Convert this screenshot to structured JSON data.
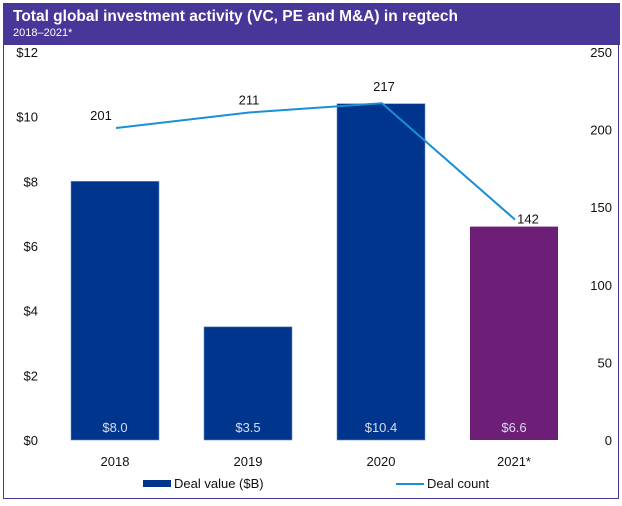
{
  "header": {
    "title": "Total global investment activity (VC, PE and M&A) in regtech",
    "subtitle": "2018–2021*"
  },
  "colors": {
    "header_bg": "#483698",
    "bar": "#00358e",
    "bar_highlight": "#6d1f78",
    "line": "#1a8fd6"
  },
  "chart_data": {
    "type": "bar",
    "title": "Total global investment activity (VC, PE and M&A) in regtech",
    "subtitle": "2018–2021*",
    "categories": [
      "2018",
      "2019",
      "2020",
      "2021*"
    ],
    "series": [
      {
        "name": "Deal value ($B)",
        "type": "bar",
        "axis": "left",
        "values": [
          8.0,
          3.5,
          10.4,
          6.6
        ],
        "labels": [
          "$8.0",
          "$3.5",
          "$10.4",
          "$6.6"
        ],
        "colors": [
          "#00358e",
          "#00358e",
          "#00358e",
          "#6d1f78"
        ]
      },
      {
        "name": "Deal count",
        "type": "line",
        "axis": "right",
        "values": [
          201,
          211,
          217,
          142
        ],
        "labels": [
          "201",
          "211",
          "217",
          "142"
        ],
        "color": "#1a8fd6"
      }
    ],
    "left_axis": {
      "range": [
        0,
        12
      ],
      "ticks": [
        0,
        2,
        4,
        6,
        8,
        10,
        12
      ],
      "tick_labels": [
        "$0",
        "$2",
        "$4",
        "$6",
        "$8",
        "$10",
        "$12"
      ]
    },
    "right_axis": {
      "range": [
        0,
        250
      ],
      "ticks": [
        0,
        50,
        100,
        150,
        200,
        250
      ],
      "tick_labels": [
        "0",
        "50",
        "100",
        "150",
        "200",
        "250"
      ]
    },
    "xlabel": "",
    "ylabel": "",
    "grid": false,
    "legend": {
      "position": "bottom",
      "entries": [
        "Deal value ($B)",
        "Deal count"
      ]
    }
  }
}
